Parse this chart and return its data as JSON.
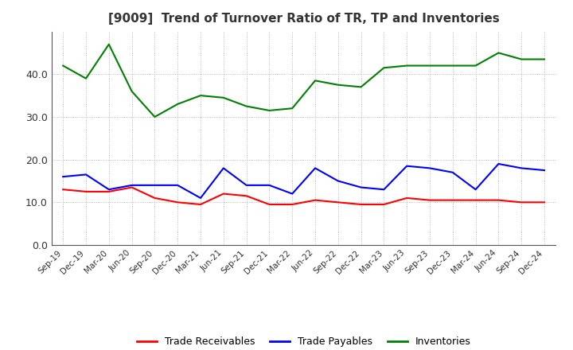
{
  "title": "[9009]  Trend of Turnover Ratio of TR, TP and Inventories",
  "x_labels": [
    "Sep-19",
    "Dec-19",
    "Mar-20",
    "Jun-20",
    "Sep-20",
    "Dec-20",
    "Mar-21",
    "Jun-21",
    "Sep-21",
    "Dec-21",
    "Mar-22",
    "Jun-22",
    "Sep-22",
    "Dec-22",
    "Mar-23",
    "Jun-23",
    "Sep-23",
    "Dec-23",
    "Mar-24",
    "Jun-24",
    "Sep-24",
    "Dec-24"
  ],
  "trade_receivables": [
    13.0,
    12.5,
    12.5,
    13.5,
    11.0,
    10.0,
    9.5,
    12.0,
    11.5,
    9.5,
    9.5,
    10.5,
    10.0,
    9.5,
    9.5,
    11.0,
    10.5,
    10.5,
    10.5,
    10.5,
    10.0,
    10.0
  ],
  "trade_payables": [
    16.0,
    16.5,
    13.0,
    14.0,
    14.0,
    14.0,
    11.0,
    18.0,
    14.0,
    14.0,
    12.0,
    18.0,
    15.0,
    13.5,
    13.0,
    18.5,
    18.0,
    17.0,
    13.0,
    19.0,
    18.0,
    17.5
  ],
  "inventories": [
    42.0,
    39.0,
    47.0,
    36.0,
    30.0,
    33.0,
    35.0,
    34.5,
    32.5,
    31.5,
    32.0,
    38.5,
    37.5,
    37.0,
    41.5,
    42.0,
    42.0,
    42.0,
    42.0,
    45.0,
    43.5,
    43.5
  ],
  "tr_color": "#ff0000",
  "tp_color": "#0000ff",
  "inv_color": "#008000",
  "ylim": [
    0,
    50
  ],
  "yticks": [
    0.0,
    10.0,
    20.0,
    30.0,
    40.0
  ],
  "background_color": "#ffffff",
  "plot_bg_color": "#ffffff",
  "grid_color": "#aaaaaa",
  "title_color": "#333333",
  "legend_labels": [
    "Trade Receivables",
    "Trade Payables",
    "Inventories"
  ]
}
